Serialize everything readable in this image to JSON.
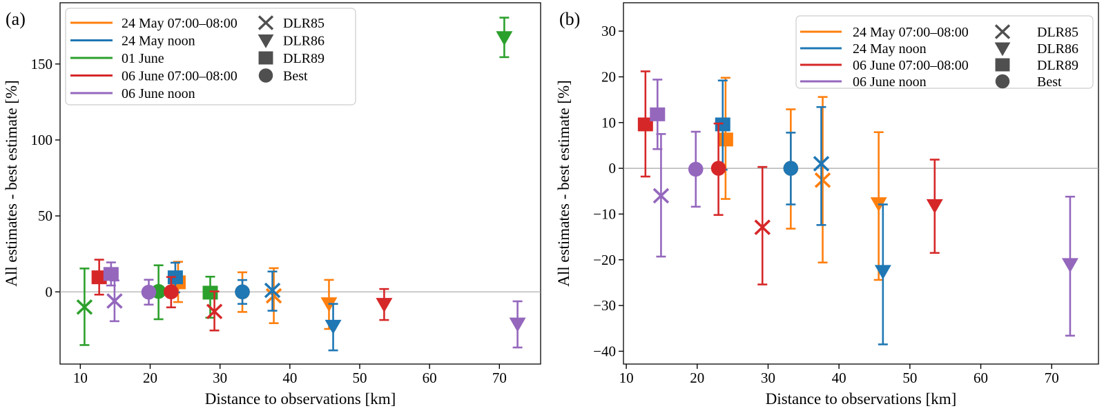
{
  "figure": {
    "panel_a_label": "(a)",
    "panel_b_label": "(b)",
    "xlabel": "Distance to observations [km]",
    "ylabel": "All estimates - best estimate [%]"
  },
  "legend": {
    "marker_color": "#4f4f4f",
    "marker_entries": [
      {
        "marker": "x",
        "label": "DLR85"
      },
      {
        "marker": "triangle-down",
        "label": "DLR86"
      },
      {
        "marker": "square",
        "label": "DLR89"
      },
      {
        "marker": "circle",
        "label": "Best"
      }
    ]
  },
  "chart_data": {
    "type": "scatter",
    "title": "",
    "xlabel": "Distance to observations [km]",
    "ylabel": "All estimates - best estimate [%]",
    "grid": false,
    "series": [
      {
        "name": "24 May 07:00–08:00",
        "color": "#ff7f0e",
        "points": [
          {
            "flight": "DLR85",
            "marker": "x",
            "x": 37.7,
            "y": -2.6,
            "err_lo": -20.6,
            "err_hi": 15.6
          },
          {
            "flight": "DLR86",
            "marker": "triangle-down",
            "x": 45.6,
            "y": -7.7,
            "err_lo": -24.4,
            "err_hi": 7.9
          },
          {
            "flight": "DLR89",
            "marker": "square",
            "x": 24.0,
            "y": 6.3,
            "err_lo": -6.7,
            "err_hi": 19.8
          },
          {
            "flight": "Best",
            "marker": "circle",
            "x": 33.2,
            "y": 0.0,
            "err_lo": -13.2,
            "err_hi": 12.9
          }
        ]
      },
      {
        "name": "24 May noon",
        "color": "#1f77b4",
        "points": [
          {
            "flight": "DLR85",
            "marker": "x",
            "x": 37.5,
            "y": 1.0,
            "err_lo": -12.4,
            "err_hi": 13.4
          },
          {
            "flight": "DLR86",
            "marker": "triangle-down",
            "x": 46.2,
            "y": -22.5,
            "err_lo": -38.5,
            "err_hi": -7.9
          },
          {
            "flight": "DLR89",
            "marker": "square",
            "x": 23.6,
            "y": 9.6,
            "err_lo": -0.3,
            "err_hi": 19.2
          },
          {
            "flight": "Best",
            "marker": "circle",
            "x": 33.2,
            "y": 0.0,
            "err_lo": -7.9,
            "err_hi": 7.8
          }
        ]
      },
      {
        "name": "01 June",
        "color": "#2ca02c",
        "points": [
          {
            "flight": "DLR85",
            "marker": "x",
            "x": 10.6,
            "y": -10.0,
            "err_lo": -35.0,
            "err_hi": 15.4
          },
          {
            "flight": "DLR86",
            "marker": "triangle-down",
            "x": 70.7,
            "y": 167.5,
            "err_lo": 154.5,
            "err_hi": 180.5
          },
          {
            "flight": "DLR89",
            "marker": "square",
            "x": 28.6,
            "y": -0.5,
            "err_lo": -17.0,
            "err_hi": 10.0
          },
          {
            "flight": "Best",
            "marker": "circle",
            "x": 21.2,
            "y": 0.3,
            "err_lo": -18.0,
            "err_hi": 17.5
          }
        ]
      },
      {
        "name": "06 June 07:00–08:00",
        "color": "#d62728",
        "points": [
          {
            "flight": "DLR85",
            "marker": "x",
            "x": 29.2,
            "y": -12.9,
            "err_lo": -25.4,
            "err_hi": 0.3
          },
          {
            "flight": "DLR86",
            "marker": "triangle-down",
            "x": 53.5,
            "y": -8.1,
            "err_lo": -18.5,
            "err_hi": 1.9
          },
          {
            "flight": "DLR89",
            "marker": "square",
            "x": 12.7,
            "y": 9.6,
            "err_lo": -1.8,
            "err_hi": 21.2
          },
          {
            "flight": "Best",
            "marker": "circle",
            "x": 23.0,
            "y": 0.0,
            "err_lo": -10.2,
            "err_hi": 9.8
          }
        ]
      },
      {
        "name": "06 June noon",
        "color": "#9467bd",
        "points": [
          {
            "flight": "DLR85",
            "marker": "x",
            "x": 14.9,
            "y": -6.0,
            "err_lo": -19.3,
            "err_hi": 7.5
          },
          {
            "flight": "DLR86",
            "marker": "triangle-down",
            "x": 72.6,
            "y": -21.0,
            "err_lo": -36.6,
            "err_hi": -6.2
          },
          {
            "flight": "DLR89",
            "marker": "square",
            "x": 14.4,
            "y": 11.8,
            "err_lo": 4.2,
            "err_hi": 19.4
          },
          {
            "flight": "Best",
            "marker": "circle",
            "x": 19.8,
            "y": -0.2,
            "err_lo": -8.4,
            "err_hi": 8.0
          }
        ]
      }
    ],
    "panels": [
      {
        "id": "a",
        "label": "(a)",
        "xlim": [
          7.1,
          75.9
        ],
        "ylim": [
          -47.5,
          190.3
        ],
        "xticks": [
          10,
          20,
          30,
          40,
          50,
          60,
          70
        ],
        "yticks": [
          0,
          50,
          100,
          150
        ],
        "series_shown": [
          0,
          1,
          2,
          3,
          4
        ],
        "legend_position": "upper left"
      },
      {
        "id": "b",
        "label": "(b)",
        "xlim": [
          9.6,
          76.6
        ],
        "ylim": [
          -42.8,
          36.2
        ],
        "xticks": [
          10,
          20,
          30,
          40,
          50,
          60,
          70
        ],
        "yticks": [
          30,
          20,
          10,
          0,
          -10,
          -20,
          -30,
          -40
        ],
        "series_shown": [
          0,
          1,
          3,
          4
        ],
        "legend_position": "upper right"
      }
    ]
  }
}
